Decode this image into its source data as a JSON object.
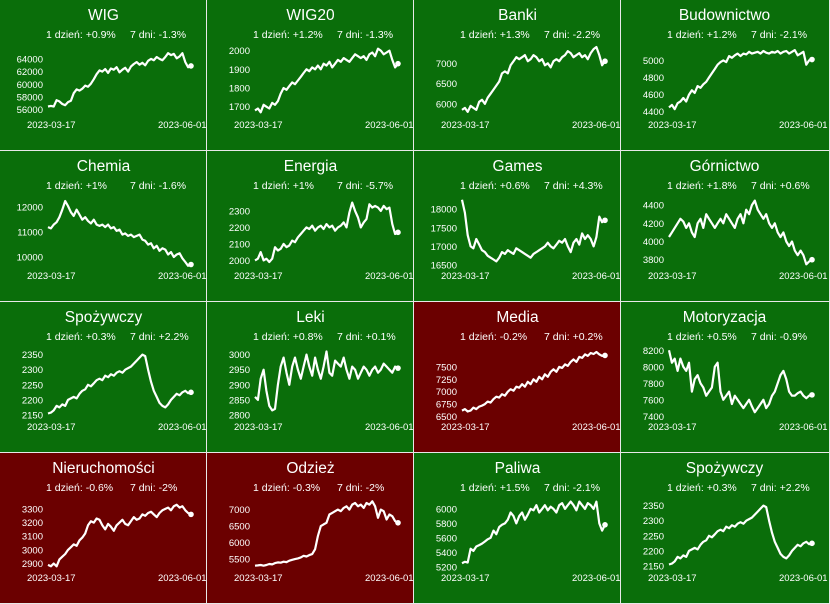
{
  "chart_data": [
    {
      "type": "line",
      "title": "WIG",
      "stat_1d": "1 dzień: +0.9%",
      "stat_7d": "7 dni: -1.3%",
      "background": "#0a6e0a",
      "yticks": [
        56000,
        58000,
        60000,
        62000,
        64000
      ],
      "ylim": [
        55000,
        66200
      ],
      "x_start": "2023-03-17",
      "x_end": "2023-06-01",
      "values": [
        56500,
        56600,
        56500,
        57500,
        57300,
        56900,
        56700,
        57200,
        57400,
        58600,
        59200,
        59000,
        59300,
        59800,
        59600,
        60100,
        60800,
        61600,
        62200,
        62000,
        62400,
        61800,
        62500,
        62300,
        62700,
        61900,
        62300,
        62600,
        62000,
        62800,
        63200,
        63500,
        63100,
        63400,
        63000,
        63700,
        64000,
        63800,
        64300,
        64000,
        63800,
        64300,
        64900,
        64600,
        64800,
        64100,
        64400,
        64900,
        63500,
        62700,
        62900
      ]
    },
    {
      "type": "line",
      "title": "WIG20",
      "stat_1d": "1 dzień: +1.2%",
      "stat_7d": "7 dni: -1.3%",
      "background": "#0a6e0a",
      "yticks": [
        1700,
        1800,
        1900,
        2000
      ],
      "ylim": [
        1650,
        2030
      ],
      "x_start": "2023-03-17",
      "x_end": "2023-06-01",
      "values": [
        1680,
        1690,
        1670,
        1710,
        1700,
        1690,
        1720,
        1710,
        1730,
        1770,
        1800,
        1790,
        1810,
        1830,
        1820,
        1840,
        1860,
        1880,
        1900,
        1890,
        1910,
        1900,
        1920,
        1900,
        1930,
        1920,
        1940,
        1910,
        1930,
        1950,
        1940,
        1960,
        1950,
        1940,
        1960,
        1980,
        1970,
        1960,
        1970,
        1950,
        1980,
        1990,
        1970,
        2010,
        2000,
        1980,
        1990,
        2000,
        1950,
        1910,
        1930
      ]
    },
    {
      "type": "line",
      "title": "Banki",
      "stat_1d": "1 dzień: +1.3%",
      "stat_7d": "7 dni: -2.2%",
      "background": "#0a6e0a",
      "yticks": [
        6000,
        6500,
        7000
      ],
      "ylim": [
        5700,
        7450
      ],
      "x_start": "2023-03-17",
      "x_end": "2023-06-01",
      "values": [
        5850,
        5900,
        5800,
        5950,
        5900,
        5850,
        6050,
        6100,
        6000,
        6150,
        6250,
        6350,
        6450,
        6550,
        6750,
        6800,
        6750,
        6950,
        7050,
        7150,
        7100,
        7150,
        7200,
        7050,
        7100,
        7200,
        7150,
        7050,
        7100,
        6950,
        7000,
        6900,
        7050,
        7100,
        7050,
        7150,
        7200,
        7300,
        7250,
        7150,
        7200,
        7250,
        7150,
        7200,
        7100,
        7250,
        7350,
        7400,
        7200,
        6950,
        7050
      ]
    },
    {
      "type": "line",
      "title": "Budownictwo",
      "stat_1d": "1 dzień: +1.2%",
      "stat_7d": "7 dni: -2.1%",
      "background": "#0a6e0a",
      "yticks": [
        4400,
        4600,
        4800,
        5000
      ],
      "ylim": [
        4350,
        5180
      ],
      "x_start": "2023-03-17",
      "x_end": "2023-06-01",
      "values": [
        4450,
        4480,
        4430,
        4500,
        4520,
        4560,
        4520,
        4600,
        4650,
        4620,
        4700,
        4680,
        4720,
        4750,
        4800,
        4850,
        4900,
        4950,
        4980,
        5000,
        4980,
        5050,
        5030,
        5060,
        5080,
        5050,
        5080,
        5070,
        5100,
        5080,
        5090,
        5100,
        5080,
        5110,
        5090,
        5080,
        5100,
        5090,
        5110,
        5080,
        5100,
        5110,
        5080,
        5100,
        5120,
        5060,
        5080,
        5100,
        4950,
        5000,
        5010
      ]
    },
    {
      "type": "line",
      "title": "Chemia",
      "stat_1d": "1 dzień: +1%",
      "stat_7d": "7 dni: -1.6%",
      "background": "#0a6e0a",
      "yticks": [
        10000,
        11000,
        12000
      ],
      "ylim": [
        9600,
        12450
      ],
      "x_start": "2023-03-17",
      "x_end": "2023-06-01",
      "values": [
        11200,
        11150,
        11300,
        11400,
        11600,
        11900,
        12250,
        12050,
        11800,
        11650,
        11900,
        11700,
        11500,
        11600,
        11450,
        11350,
        11500,
        11300,
        11250,
        11300,
        11200,
        11300,
        11150,
        11200,
        11050,
        11100,
        10900,
        10950,
        10850,
        10900,
        10800,
        10850,
        10900,
        10700,
        10650,
        10500,
        10550,
        10350,
        10450,
        10250,
        10350,
        10300,
        10100,
        10200,
        10000,
        10100,
        10150,
        9950,
        9800,
        9650,
        9700
      ]
    },
    {
      "type": "line",
      "title": "Energia",
      "stat_1d": "1 dzień: +1%",
      "stat_7d": "7 dni: -5.7%",
      "background": "#0a6e0a",
      "yticks": [
        2000,
        2100,
        2200,
        2300
      ],
      "ylim": [
        1960,
        2390
      ],
      "x_start": "2023-03-17",
      "x_end": "2023-06-01",
      "values": [
        2000,
        2010,
        2050,
        2000,
        2010,
        1990,
        2010,
        2080,
        2060,
        2070,
        2100,
        2080,
        2090,
        2120,
        2110,
        2140,
        2160,
        2180,
        2200,
        2190,
        2210,
        2180,
        2200,
        2210,
        2190,
        2220,
        2200,
        2210,
        2180,
        2200,
        2210,
        2230,
        2200,
        2290,
        2350,
        2300,
        2260,
        2200,
        2230,
        2250,
        2340,
        2320,
        2330,
        2320,
        2300,
        2330,
        2310,
        2320,
        2220,
        2160,
        2170
      ]
    },
    {
      "type": "line",
      "title": "Games",
      "stat_1d": "1 dzień: +0.6%",
      "stat_7d": "7 dni: +4.3%",
      "background": "#0a6e0a",
      "yticks": [
        16500,
        17000,
        17500,
        18000
      ],
      "ylim": [
        16450,
        18350
      ],
      "x_start": "2023-03-17",
      "x_end": "2023-06-01",
      "values": [
        18250,
        17900,
        17300,
        17000,
        16950,
        17200,
        17050,
        16900,
        16850,
        16750,
        16700,
        16650,
        16600,
        16700,
        16850,
        16800,
        16900,
        16850,
        16800,
        16950,
        16900,
        16850,
        16800,
        16750,
        16700,
        16800,
        16850,
        16900,
        16950,
        17000,
        17100,
        17000,
        16950,
        17050,
        17150,
        17100,
        17200,
        17000,
        16850,
        17100,
        17200,
        17050,
        17350,
        17200,
        17300,
        17200,
        17000,
        17250,
        17800,
        17650,
        17700
      ]
    },
    {
      "type": "line",
      "title": "Górnictwo",
      "stat_1d": "1 dzień: +1.8%",
      "stat_7d": "7 dni: +0.6%",
      "background": "#0a6e0a",
      "yticks": [
        3800,
        4000,
        4200,
        4400
      ],
      "ylim": [
        3720,
        4500
      ],
      "x_start": "2023-03-17",
      "x_end": "2023-06-01",
      "values": [
        4050,
        4100,
        4150,
        4200,
        4250,
        4220,
        4150,
        4200,
        4100,
        4050,
        4200,
        4250,
        4150,
        4300,
        4250,
        4200,
        4150,
        4200,
        4250,
        4200,
        4300,
        4250,
        4200,
        4150,
        4250,
        4300,
        4200,
        4350,
        4300,
        4400,
        4450,
        4350,
        4300,
        4250,
        4300,
        4200,
        4150,
        4200,
        4100,
        4050,
        4100,
        4000,
        3950,
        4000,
        3900,
        3850,
        3900,
        3850,
        3750,
        3780,
        3800
      ]
    },
    {
      "type": "line",
      "title": "Spożywczy",
      "stat_1d": "1 dzień: +0.3%",
      "stat_7d": "7 dni: +2.2%",
      "background": "#0a6e0a",
      "yticks": [
        2150,
        2200,
        2250,
        2300,
        2350
      ],
      "ylim": [
        2140,
        2375
      ],
      "x_start": "2023-03-17",
      "x_end": "2023-06-01",
      "values": [
        2155,
        2158,
        2165,
        2180,
        2175,
        2185,
        2180,
        2200,
        2205,
        2210,
        2205,
        2220,
        2230,
        2235,
        2250,
        2245,
        2255,
        2265,
        2270,
        2265,
        2280,
        2275,
        2285,
        2280,
        2290,
        2295,
        2290,
        2300,
        2305,
        2310,
        2320,
        2330,
        2340,
        2350,
        2345,
        2300,
        2260,
        2230,
        2210,
        2190,
        2180,
        2175,
        2185,
        2200,
        2210,
        2220,
        2215,
        2225,
        2230,
        2222,
        2225
      ]
    },
    {
      "type": "line",
      "title": "Leki",
      "stat_1d": "1 dzień: +0.8%",
      "stat_7d": "7 dni: +0.1%",
      "background": "#0a6e0a",
      "yticks": [
        2800,
        2850,
        2900,
        2950,
        3000
      ],
      "ylim": [
        2790,
        3025
      ],
      "x_start": "2023-03-17",
      "x_end": "2023-06-01",
      "values": [
        2860,
        2850,
        2920,
        2950,
        2880,
        2830,
        2815,
        2820,
        2900,
        2960,
        2990,
        2940,
        2900,
        2960,
        2990,
        2950,
        2920,
        2960,
        3000,
        2960,
        2930,
        2990,
        2950,
        2920,
        2960,
        3010,
        2940,
        2930,
        2980,
        2970,
        2960,
        2990,
        2950,
        2920,
        2960,
        2950,
        2920,
        2940,
        2960,
        2950,
        2930,
        2950,
        2960,
        2940,
        2950,
        2970,
        2960,
        2950,
        2940,
        2960,
        2955
      ]
    },
    {
      "type": "line",
      "title": "Media",
      "stat_1d": "1 dzień: -0.2%",
      "stat_7d": "7 dni: +0.2%",
      "background": "#6b0000",
      "yticks": [
        6500,
        6750,
        7000,
        7250,
        7500
      ],
      "ylim": [
        6470,
        7900
      ],
      "x_start": "2023-03-17",
      "x_end": "2023-06-01",
      "values": [
        6620,
        6650,
        6600,
        6620,
        6680,
        6650,
        6700,
        6720,
        6750,
        6800,
        6780,
        6850,
        6900,
        6880,
        6950,
        6920,
        7000,
        7050,
        7020,
        7100,
        7080,
        7150,
        7100,
        7200,
        7150,
        7250,
        7200,
        7300,
        7250,
        7350,
        7300,
        7400,
        7450,
        7400,
        7500,
        7480,
        7550,
        7520,
        7600,
        7650,
        7600,
        7700,
        7680,
        7750,
        7720,
        7780,
        7760,
        7800,
        7750,
        7720,
        7730
      ]
    },
    {
      "type": "line",
      "title": "Motoryzacja",
      "stat_1d": "1 dzień: +0.5%",
      "stat_7d": "7 dni: -0.9%",
      "background": "#0a6e0a",
      "yticks": [
        7400,
        7600,
        7800,
        8000,
        8200
      ],
      "ylim": [
        7380,
        8240
      ],
      "x_start": "2023-03-17",
      "x_end": "2023-06-01",
      "values": [
        8200,
        8050,
        8100,
        7950,
        8100,
        8000,
        7950,
        8050,
        7700,
        7850,
        7900,
        7800,
        7750,
        7650,
        7700,
        7750,
        8000,
        8050,
        7700,
        7600,
        7650,
        7700,
        7550,
        7650,
        7600,
        7550,
        7500,
        7550,
        7600,
        7520,
        7450,
        7500,
        7550,
        7600,
        7500,
        7550,
        7650,
        7700,
        7800,
        7900,
        7950,
        7850,
        7700,
        7650,
        7650,
        7680,
        7700,
        7650,
        7620,
        7650,
        7660
      ]
    },
    {
      "type": "line",
      "title": "Nieruchomości",
      "stat_1d": "1 dzień: -0.6%",
      "stat_7d": "7 dni: -2%",
      "background": "#6b0000",
      "yticks": [
        2900,
        3000,
        3100,
        3200,
        3300
      ],
      "ylim": [
        2860,
        3380
      ],
      "x_start": "2023-03-17",
      "x_end": "2023-06-01",
      "values": [
        2890,
        2880,
        2900,
        2880,
        2930,
        2950,
        2970,
        3000,
        3020,
        3040,
        3030,
        3070,
        3090,
        3120,
        3180,
        3210,
        3200,
        3230,
        3220,
        3180,
        3150,
        3190,
        3170,
        3140,
        3180,
        3200,
        3220,
        3190,
        3180,
        3210,
        3240,
        3220,
        3230,
        3260,
        3250,
        3270,
        3280,
        3260,
        3240,
        3270,
        3290,
        3300,
        3310,
        3290,
        3320,
        3330,
        3310,
        3320,
        3290,
        3270,
        3260
      ]
    },
    {
      "type": "line",
      "title": "Odzież",
      "stat_1d": "1 dzień: -0.3%",
      "stat_7d": "7 dni: -2%",
      "background": "#6b0000",
      "yticks": [
        5500,
        6000,
        6500,
        7000
      ],
      "ylim": [
        5200,
        7350
      ],
      "x_start": "2023-03-17",
      "x_end": "2023-06-01",
      "values": [
        5300,
        5310,
        5320,
        5300,
        5320,
        5350,
        5340,
        5380,
        5400,
        5390,
        5420,
        5410,
        5450,
        5480,
        5500,
        5520,
        5550,
        5600,
        5580,
        5620,
        5650,
        5800,
        6200,
        6500,
        6550,
        6600,
        6850,
        6900,
        6950,
        7000,
        6950,
        7050,
        7100,
        7000,
        7150,
        7200,
        7100,
        7150,
        7050,
        7200,
        7150,
        7250,
        7100,
        6750,
        7000,
        6950,
        6700,
        6850,
        6800,
        6650,
        6600
      ]
    },
    {
      "type": "line",
      "title": "Paliwa",
      "stat_1d": "1 dzień: +1.5%",
      "stat_7d": "7 dni: -2.1%",
      "background": "#0a6e0a",
      "yticks": [
        5200,
        5400,
        5600,
        5800,
        6000
      ],
      "ylim": [
        5170,
        6150
      ],
      "x_start": "2023-03-17",
      "x_end": "2023-06-01",
      "values": [
        5250,
        5270,
        5260,
        5450,
        5420,
        5480,
        5500,
        5520,
        5550,
        5580,
        5600,
        5700,
        5650,
        5750,
        5780,
        5800,
        5850,
        5950,
        5900,
        5800,
        5900,
        5950,
        5850,
        5920,
        6000,
        5980,
        6050,
        5950,
        6000,
        6050,
        5980,
        6030,
        6000,
        5950,
        6050,
        6080,
        6000,
        6050,
        6100,
        6050,
        5980,
        6100,
        6050,
        6000,
        6080,
        6050,
        6000,
        6100,
        5800,
        5700,
        5780
      ]
    },
    {
      "type": "line",
      "title": "Spożywczy",
      "stat_1d": "1 dzień: +0.3%",
      "stat_7d": "7 dni: +2.2%",
      "background": "#0a6e0a",
      "yticks": [
        2150,
        2200,
        2250,
        2300,
        2350
      ],
      "ylim": [
        2140,
        2375
      ],
      "x_start": "2023-03-17",
      "x_end": "2023-06-01",
      "values": [
        2155,
        2158,
        2165,
        2180,
        2175,
        2185,
        2180,
        2200,
        2205,
        2210,
        2205,
        2220,
        2230,
        2235,
        2250,
        2245,
        2255,
        2265,
        2270,
        2265,
        2280,
        2275,
        2285,
        2280,
        2290,
        2295,
        2290,
        2300,
        2305,
        2310,
        2320,
        2330,
        2340,
        2350,
        2345,
        2300,
        2260,
        2230,
        2210,
        2190,
        2180,
        2175,
        2185,
        2200,
        2210,
        2220,
        2215,
        2225,
        2230,
        2222,
        2225
      ]
    }
  ]
}
